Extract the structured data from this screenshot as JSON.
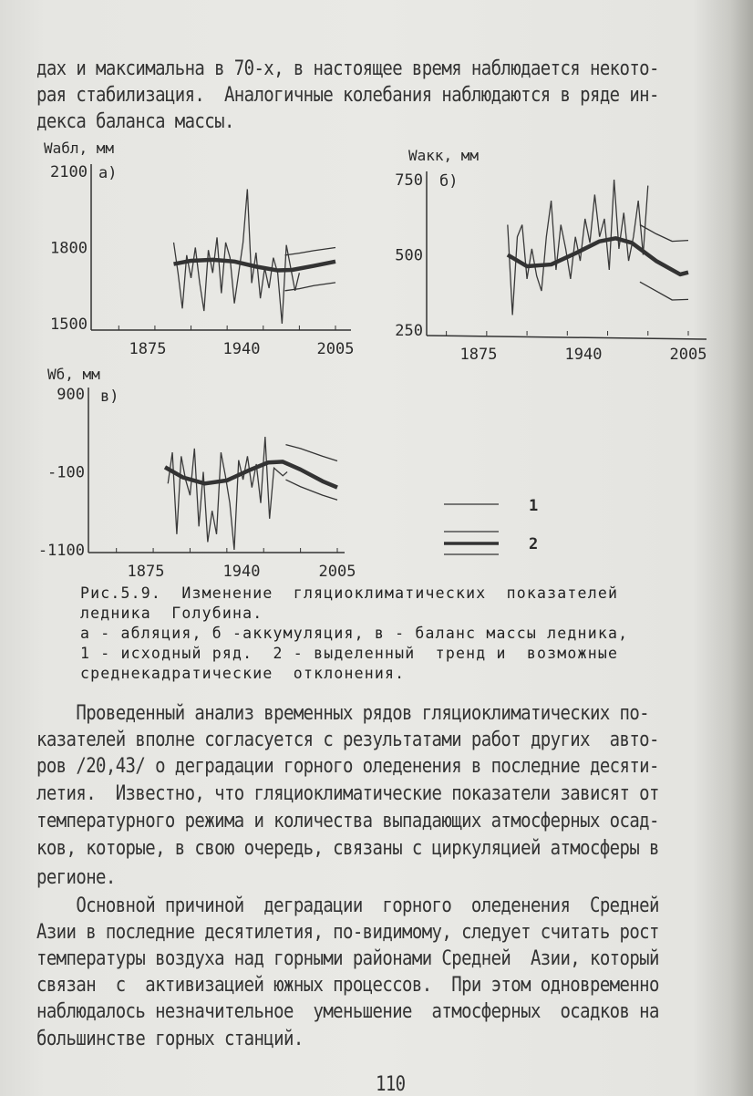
{
  "top_text": [
    "дах и максимальна в 70-х, в настоящее время наблюдается некото-",
    "рая стабилизация.  Аналогичные колебания наблюдаются в ряде ин-",
    "декса баланса массы."
  ],
  "caption": [
    "Рис.5.9.  Изменение  гляциоклиматических  показателей",
    "ледника  Голубина.",
    "а - абляция, б -аккумуляция, в - баланс массы ледника,",
    "1 - исходный ряд.  2 - выделенный  тренд и  возможные",
    "среднекадратические  отклонения."
  ],
  "paragraph1": [
    "    Проведенный анализ временных рядов гляциоклиматических по-",
    "казателей вполне согласуется с результатами работ других  авто-",
    "ров /20,43/ о деградации горного оледенения в последние десяти-",
    "летия.  Известно, что гляциоклиматические показатели зависят от",
    "температурного режима и количества выпадающих атмосферных осад-",
    "ков, которые, в свою очередь, связаны с циркуляцией атмосферы в",
    "регионе."
  ],
  "paragraph2": [
    "    Основной причиной  деградации  горного  оледенения  Средней",
    "Азии в последние десятилетия, по-видимому, следует считать рост",
    "температуры воздуха над горными районами Средней  Азии, который",
    "связан  с  активизацией южных процессов.  При этом одновременно",
    "наблюдалось незначительное  уменьшение  атмосферных  осадков на",
    "большинстве горных станций."
  ],
  "page_number": "110",
  "legend": {
    "item1": "1",
    "item2": "2"
  },
  "chart_data": [
    {
      "type": "line",
      "panel": "а)",
      "ylabel": "Wабл, мм",
      "xticks": [
        "1875",
        "1940",
        "2005"
      ],
      "yticks": [
        "1500",
        "1800",
        "2100"
      ],
      "ylim": [
        1500,
        2100
      ],
      "raw": {
        "start": 1893,
        "step": 3,
        "values": [
          1820,
          1700,
          1560,
          1770,
          1680,
          1800,
          1660,
          1550,
          1790,
          1700,
          1840,
          1620,
          1820,
          1760,
          1580,
          1700,
          1820,
          2030,
          1660,
          1780,
          1600,
          1720,
          1640,
          1760,
          1700,
          1500,
          1810,
          1720,
          1630,
          1700
        ]
      },
      "trend": {
        "x": [
          1893,
          1905,
          1920,
          1935,
          1950,
          1965,
          1975,
          1990,
          2005
        ],
        "y": [
          1735,
          1748,
          1752,
          1745,
          1725,
          1710,
          1712,
          1728,
          1745
        ]
      },
      "upper": {
        "x": [
          1970,
          1980,
          1990,
          2005
        ],
        "y": [
          1770,
          1778,
          1788,
          1800
        ]
      },
      "lower": {
        "x": [
          1970,
          1980,
          1990,
          2005
        ],
        "y": [
          1630,
          1638,
          1650,
          1662
        ]
      }
    },
    {
      "type": "line",
      "panel": "б)",
      "ylabel": "Wакк, мм",
      "xticks": [
        "1875",
        "1940",
        "2005"
      ],
      "yticks": [
        "250",
        "500",
        "750"
      ],
      "ylim": [
        250,
        750
      ],
      "raw": {
        "start": 1893,
        "step": 3,
        "values": [
          600,
          300,
          560,
          600,
          420,
          520,
          430,
          380,
          560,
          680,
          450,
          600,
          520,
          420,
          560,
          480,
          620,
          540,
          700,
          560,
          620,
          450,
          750,
          520,
          640,
          480,
          560,
          680,
          500,
          730
        ]
      },
      "trend": {
        "x": [
          1893,
          1905,
          1920,
          1935,
          1950,
          1960,
          1970,
          1985,
          2000,
          2005
        ],
        "y": [
          500,
          462,
          468,
          505,
          545,
          555,
          540,
          480,
          435,
          442
        ]
      },
      "upper": {
        "x": [
          1975,
          1985,
          1995,
          2005
        ],
        "y": [
          600,
          570,
          545,
          548
        ]
      },
      "lower": {
        "x": [
          1975,
          1985,
          1995,
          2005
        ],
        "y": [
          410,
          380,
          350,
          352
        ]
      }
    },
    {
      "type": "line",
      "panel": "в)",
      "ylabel": "Wб, мм",
      "xticks": [
        "1875",
        "1940",
        "2005"
      ],
      "yticks": [
        "-1100",
        "-100",
        "900"
      ],
      "ylim": [
        -1100,
        900
      ],
      "raw": {
        "start": 1890,
        "step": 3,
        "values": [
          -250,
          150,
          -900,
          100,
          -200,
          -400,
          200,
          -800,
          -100,
          -1000,
          -600,
          -900,
          150,
          -150,
          -500,
          -1100,
          50,
          -200,
          100,
          -300,
          0,
          -500,
          350,
          -700,
          -50,
          -100,
          -150,
          -100
        ]
      },
      "trend": {
        "x": [
          1888,
          1900,
          1915,
          1930,
          1945,
          1958,
          1968,
          1980,
          1995,
          2005
        ],
        "y": [
          -40,
          -170,
          -250,
          -210,
          -80,
          20,
          30,
          -70,
          -220,
          -300
        ]
      },
      "upper": {
        "x": [
          1970,
          1980,
          1995,
          2005
        ],
        "y": [
          250,
          200,
          100,
          40
        ]
      },
      "lower": {
        "x": [
          1970,
          1980,
          1995,
          2005
        ],
        "y": [
          -200,
          -290,
          -400,
          -460
        ]
      }
    }
  ]
}
